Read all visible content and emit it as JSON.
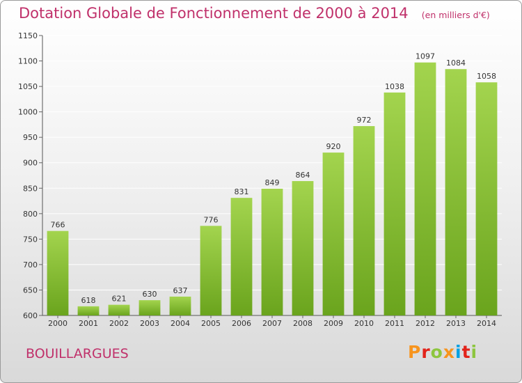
{
  "header": {
    "title": "Dotation Globale de Fonctionnement de 2000 à 2014",
    "subtitle": "(en milliers d'€)"
  },
  "footer": {
    "place": "BOUILLARGUES",
    "logo": "Proxiti",
    "logo_colors": [
      "#f7941d",
      "#e2231a",
      "#8dc63f",
      "#f7941d",
      "#00a0e3",
      "#e2231a",
      "#8dc63f"
    ]
  },
  "colors": {
    "bar_light": "#a3d44e",
    "bar_dark": "#6aa41d",
    "title": "#c0306a",
    "grid": "#ffffff"
  },
  "chart_data": {
    "type": "bar",
    "title": "Dotation Globale de Fonctionnement de 2000 à 2014",
    "subtitle": "(en milliers d'€)",
    "xlabel": "",
    "ylabel": "",
    "categories": [
      "2000",
      "2001",
      "2002",
      "2003",
      "2004",
      "2005",
      "2006",
      "2007",
      "2008",
      "2009",
      "2010",
      "2011",
      "2012",
      "2013",
      "2014"
    ],
    "values": [
      766,
      618,
      621,
      630,
      637,
      776,
      831,
      849,
      864,
      920,
      972,
      1038,
      1097,
      1084,
      1058
    ],
    "ylim": [
      600,
      1150
    ],
    "yticks": [
      600,
      650,
      700,
      750,
      800,
      850,
      900,
      950,
      1000,
      1050,
      1100,
      1150
    ],
    "grid": true,
    "legend": "none"
  }
}
